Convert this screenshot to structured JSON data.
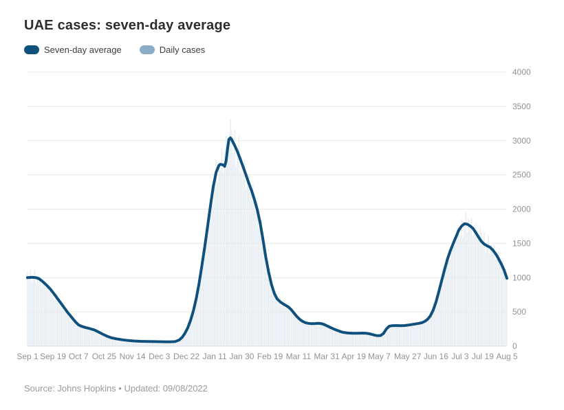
{
  "header": {
    "title": "UAE cases: seven-day average"
  },
  "legend": {
    "items": [
      {
        "label": "Seven-day average",
        "color": "#0f507c"
      },
      {
        "label": "Daily cases",
        "color": "#8badc7"
      }
    ]
  },
  "footer": {
    "source_line": "Source: Johns Hopkins • Updated: 09/08/2022"
  },
  "chart_data": {
    "type": "line",
    "title": "UAE cases: seven-day average",
    "xlabel": "",
    "ylabel": "",
    "ylim": [
      0,
      4000
    ],
    "y_ticks": [
      0,
      500,
      1000,
      1500,
      2000,
      2500,
      3000,
      3500,
      4000
    ],
    "y_axis_side": "right",
    "grid": true,
    "legend_position": "top-left",
    "x_total_days": 338,
    "x_ticks": [
      {
        "day": 0,
        "label": "Sep 1"
      },
      {
        "day": 18,
        "label": "Sep 19"
      },
      {
        "day": 36,
        "label": "Oct 7"
      },
      {
        "day": 54,
        "label": "Oct 25"
      },
      {
        "day": 74,
        "label": "Nov 14"
      },
      {
        "day": 93,
        "label": "Dec 3"
      },
      {
        "day": 112,
        "label": "Dec 22"
      },
      {
        "day": 132,
        "label": "Jan 11"
      },
      {
        "day": 151,
        "label": "Jan 30"
      },
      {
        "day": 171,
        "label": "Feb 19"
      },
      {
        "day": 191,
        "label": "Mar 11"
      },
      {
        "day": 211,
        "label": "Mar 31"
      },
      {
        "day": 230,
        "label": "Apr 19"
      },
      {
        "day": 248,
        "label": "May 7"
      },
      {
        "day": 268,
        "label": "May 27"
      },
      {
        "day": 288,
        "label": "Jun 16"
      },
      {
        "day": 305,
        "label": "Jul 3"
      },
      {
        "day": 321,
        "label": "Jul 19"
      },
      {
        "day": 338,
        "label": "Aug 5"
      }
    ],
    "series": [
      {
        "name": "Seven-day average",
        "type": "line",
        "color": "#0f507c",
        "stroke_width": 4,
        "points": [
          [
            0,
            1000
          ],
          [
            3,
            1005
          ],
          [
            6,
            1000
          ],
          [
            8,
            985
          ],
          [
            10,
            955
          ],
          [
            13,
            900
          ],
          [
            16,
            835
          ],
          [
            19,
            755
          ],
          [
            22,
            670
          ],
          [
            25,
            585
          ],
          [
            28,
            500
          ],
          [
            31,
            425
          ],
          [
            34,
            350
          ],
          [
            36,
            310
          ],
          [
            38,
            290
          ],
          [
            41,
            272
          ],
          [
            44,
            256
          ],
          [
            47,
            238
          ],
          [
            50,
            208
          ],
          [
            53,
            175
          ],
          [
            56,
            145
          ],
          [
            59,
            122
          ],
          [
            63,
            105
          ],
          [
            67,
            92
          ],
          [
            71,
            82
          ],
          [
            75,
            75
          ],
          [
            80,
            70
          ],
          [
            85,
            68
          ],
          [
            90,
            66
          ],
          [
            95,
            64
          ],
          [
            100,
            63
          ],
          [
            104,
            66
          ],
          [
            107,
            90
          ],
          [
            109,
            128
          ],
          [
            111,
            188
          ],
          [
            113,
            268
          ],
          [
            115,
            378
          ],
          [
            117,
            520
          ],
          [
            119,
            700
          ],
          [
            121,
            920
          ],
          [
            123,
            1180
          ],
          [
            125,
            1460
          ],
          [
            127,
            1750
          ],
          [
            129,
            2050
          ],
          [
            131,
            2330
          ],
          [
            133,
            2540
          ],
          [
            135,
            2640
          ],
          [
            136,
            2655
          ],
          [
            138,
            2645
          ],
          [
            139,
            2625
          ],
          [
            140,
            2700
          ],
          [
            141,
            2880
          ],
          [
            142,
            3020
          ],
          [
            143,
            3040
          ],
          [
            144,
            3015
          ],
          [
            146,
            2930
          ],
          [
            148,
            2840
          ],
          [
            150,
            2730
          ],
          [
            152,
            2620
          ],
          [
            154,
            2500
          ],
          [
            156,
            2380
          ],
          [
            158,
            2270
          ],
          [
            160,
            2140
          ],
          [
            162,
            1990
          ],
          [
            164,
            1800
          ],
          [
            166,
            1560
          ],
          [
            168,
            1300
          ],
          [
            170,
            1080
          ],
          [
            172,
            900
          ],
          [
            174,
            770
          ],
          [
            176,
            690
          ],
          [
            178,
            650
          ],
          [
            180,
            620
          ],
          [
            182,
            595
          ],
          [
            184,
            570
          ],
          [
            186,
            530
          ],
          [
            188,
            480
          ],
          [
            190,
            430
          ],
          [
            192,
            390
          ],
          [
            194,
            360
          ],
          [
            196,
            342
          ],
          [
            198,
            333
          ],
          [
            200,
            328
          ],
          [
            202,
            328
          ],
          [
            204,
            333
          ],
          [
            206,
            332
          ],
          [
            208,
            325
          ],
          [
            210,
            308
          ],
          [
            212,
            288
          ],
          [
            214,
            268
          ],
          [
            216,
            250
          ],
          [
            218,
            234
          ],
          [
            220,
            218
          ],
          [
            222,
            204
          ],
          [
            224,
            196
          ],
          [
            226,
            191
          ],
          [
            228,
            189
          ],
          [
            230,
            187
          ],
          [
            233,
            188
          ],
          [
            236,
            190
          ],
          [
            239,
            187
          ],
          [
            241,
            180
          ],
          [
            243,
            170
          ],
          [
            245,
            158
          ],
          [
            247,
            152
          ],
          [
            249,
            155
          ],
          [
            251,
            185
          ],
          [
            253,
            250
          ],
          [
            255,
            290
          ],
          [
            257,
            299
          ],
          [
            260,
            301
          ],
          [
            263,
            299
          ],
          [
            266,
            301
          ],
          [
            269,
            309
          ],
          [
            272,
            319
          ],
          [
            275,
            329
          ],
          [
            278,
            342
          ],
          [
            280,
            360
          ],
          [
            282,
            390
          ],
          [
            284,
            440
          ],
          [
            286,
            525
          ],
          [
            288,
            645
          ],
          [
            290,
            795
          ],
          [
            292,
            955
          ],
          [
            294,
            1115
          ],
          [
            296,
            1265
          ],
          [
            298,
            1385
          ],
          [
            300,
            1490
          ],
          [
            302,
            1590
          ],
          [
            304,
            1690
          ],
          [
            306,
            1750
          ],
          [
            308,
            1785
          ],
          [
            310,
            1780
          ],
          [
            312,
            1755
          ],
          [
            314,
            1720
          ],
          [
            316,
            1660
          ],
          [
            318,
            1590
          ],
          [
            320,
            1530
          ],
          [
            322,
            1490
          ],
          [
            324,
            1465
          ],
          [
            326,
            1445
          ],
          [
            328,
            1405
          ],
          [
            330,
            1350
          ],
          [
            332,
            1280
          ],
          [
            334,
            1200
          ],
          [
            336,
            1110
          ],
          [
            337,
            1050
          ],
          [
            338,
            990
          ]
        ]
      },
      {
        "name": "Daily cases",
        "type": "bar",
        "color": "#e2eaf1",
        "envelope_points": [
          [
            0,
            1060
          ],
          [
            6,
            1010
          ],
          [
            12,
            925
          ],
          [
            18,
            770
          ],
          [
            24,
            610
          ],
          [
            30,
            450
          ],
          [
            36,
            315
          ],
          [
            42,
            270
          ],
          [
            48,
            232
          ],
          [
            54,
            165
          ],
          [
            60,
            118
          ],
          [
            68,
            90
          ],
          [
            76,
            74
          ],
          [
            85,
            68
          ],
          [
            95,
            64
          ],
          [
            102,
            63
          ],
          [
            106,
            80
          ],
          [
            110,
            160
          ],
          [
            114,
            330
          ],
          [
            118,
            620
          ],
          [
            122,
            1060
          ],
          [
            126,
            1620
          ],
          [
            130,
            2200
          ],
          [
            134,
            2600
          ],
          [
            136,
            2680
          ],
          [
            139,
            2850
          ],
          [
            141,
            3060
          ],
          [
            143,
            3120
          ],
          [
            145,
            2990
          ],
          [
            148,
            2870
          ],
          [
            152,
            2650
          ],
          [
            156,
            2410
          ],
          [
            160,
            2170
          ],
          [
            164,
            1830
          ],
          [
            168,
            1320
          ],
          [
            172,
            915
          ],
          [
            176,
            700
          ],
          [
            180,
            630
          ],
          [
            186,
            540
          ],
          [
            192,
            398
          ],
          [
            198,
            340
          ],
          [
            204,
            340
          ],
          [
            210,
            315
          ],
          [
            216,
            255
          ],
          [
            222,
            208
          ],
          [
            228,
            193
          ],
          [
            234,
            192
          ],
          [
            240,
            190
          ],
          [
            245,
            162
          ],
          [
            249,
            160
          ],
          [
            253,
            255
          ],
          [
            258,
            305
          ],
          [
            264,
            302
          ],
          [
            270,
            314
          ],
          [
            276,
            336
          ],
          [
            280,
            368
          ],
          [
            284,
            450
          ],
          [
            288,
            660
          ],
          [
            292,
            975
          ],
          [
            296,
            1285
          ],
          [
            300,
            1510
          ],
          [
            304,
            1680
          ],
          [
            308,
            1785
          ],
          [
            311,
            1815
          ],
          [
            315,
            1750
          ],
          [
            319,
            1645
          ],
          [
            323,
            1528
          ],
          [
            327,
            1455
          ],
          [
            331,
            1365
          ],
          [
            335,
            1220
          ],
          [
            338,
            1015
          ]
        ],
        "jitter": [
          1.03,
          0.94,
          1.07,
          0.9,
          1.0,
          1.09,
          0.92,
          1.02,
          0.96,
          1.05,
          0.91,
          1.0,
          1.04,
          0.95,
          0.98,
          1.06
        ]
      }
    ],
    "colors": {
      "gridline": "#e8e8e8",
      "baseline": "#d9d9d9",
      "axis_text": "#929292"
    }
  }
}
